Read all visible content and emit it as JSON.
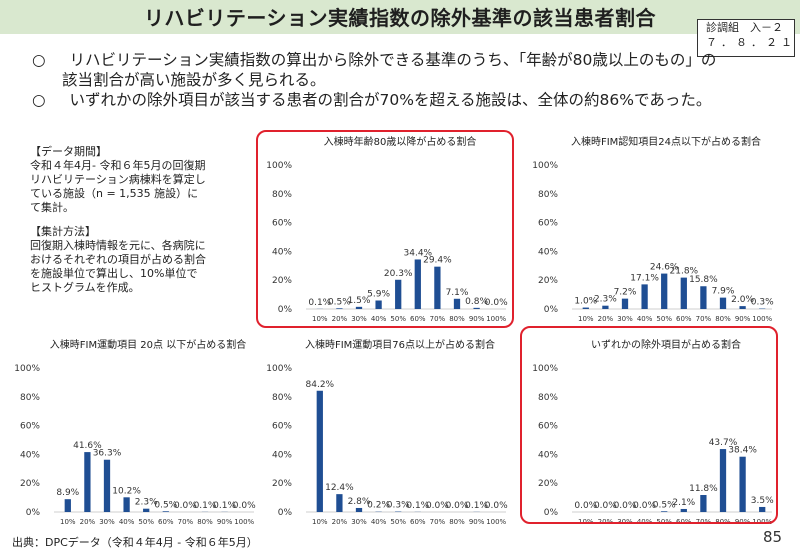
{
  "header": {
    "title": "リハビリテーション実績指数の除外基準の該当患者割合",
    "doc_ref_line1": "診調組　入－２",
    "doc_ref_line2": "７．８．２１"
  },
  "summary": {
    "bullet1": "○",
    "bullet1_text_a": "リハビリテーション実績指数の算出から除外できる基準のうち、「年齢が80歳以上のもの」の",
    "bullet1_text_b": "該当割合が高い施設が多く見られる。",
    "bullet2": "○",
    "bullet2_text": "いずれかの除外項目が該当する患者の割合が70%を超える施設は、全体の約86%であった。"
  },
  "notes": {
    "period_heading": "【データ期間】",
    "period_text_1": "令和４年4月- 令和６年5月の回復期",
    "period_text_2": "リハビリテーション病棟料を算定し",
    "period_text_3": "ている施設（n = 1,535 施設）に",
    "period_text_4": "て集計。",
    "method_heading": "【集計方法】",
    "method_text_1": "回復期入棟時情報を元に、各病院に",
    "method_text_2": "おけるそれぞれの項目が占める割合",
    "method_text_3": "を施設単位で算出し、10%単位で",
    "method_text_4": "ヒストグラムを作成。"
  },
  "footer": {
    "source": "出典：DPCデータ（令和４年4月 - 令和６年5月）",
    "page_number": "85"
  },
  "colors": {
    "bar": "#1f4e93",
    "highlight": "#e0212d",
    "title_bg": "#d9e8cf"
  },
  "chart_data": [
    {
      "type": "bar",
      "title": "入棟時年齢80歳以降が占める割合",
      "categories": [
        "10%",
        "20%",
        "30%",
        "40%",
        "50%",
        "60%",
        "70%",
        "80%",
        "90%",
        "100%"
      ],
      "values": [
        0.1,
        0.5,
        1.5,
        5.9,
        20.3,
        34.4,
        29.4,
        7.1,
        0.8,
        0.0
      ],
      "labels": [
        "0.1%",
        "0.5%",
        "1.5%",
        "5.9%",
        "20.3%",
        "34.4%",
        "29.4%",
        "7.1%",
        "0.8%",
        "0.0%"
      ],
      "yticks": [
        "0%",
        "20%",
        "40%",
        "60%",
        "80%",
        "100%"
      ],
      "ylim": [
        0,
        100
      ],
      "highlighted": true
    },
    {
      "type": "bar",
      "title": "入棟時FIM認知項目24点以下が占める割合",
      "categories": [
        "10%",
        "20%",
        "30%",
        "40%",
        "50%",
        "60%",
        "70%",
        "80%",
        "90%",
        "100%"
      ],
      "values": [
        1.0,
        2.3,
        7.2,
        17.1,
        24.6,
        21.8,
        15.8,
        7.9,
        2.0,
        0.3
      ],
      "labels": [
        "1.0%",
        "2.3%",
        "7.2%",
        "17.1%",
        "24.6%",
        "21.8%",
        "15.8%",
        "7.9%",
        "2.0%",
        "0.3%"
      ],
      "yticks": [
        "0%",
        "20%",
        "40%",
        "60%",
        "80%",
        "100%"
      ],
      "ylim": [
        0,
        100
      ],
      "highlighted": false
    },
    {
      "type": "bar",
      "title": "入棟時FIM運動項目 20点 以下が占める割合",
      "categories": [
        "10%",
        "20%",
        "30%",
        "40%",
        "50%",
        "60%",
        "70%",
        "80%",
        "90%",
        "100%"
      ],
      "values": [
        8.9,
        41.6,
        36.3,
        10.2,
        2.3,
        0.5,
        0.0,
        0.1,
        0.1,
        0.0
      ],
      "labels": [
        "8.9%",
        "41.6%",
        "36.3%",
        "10.2%",
        "2.3%",
        "0.5%",
        "0.0%",
        "0.1%",
        "0.1%",
        "0.0%"
      ],
      "yticks": [
        "0%",
        "20%",
        "40%",
        "60%",
        "80%",
        "100%"
      ],
      "ylim": [
        0,
        100
      ],
      "highlighted": false
    },
    {
      "type": "bar",
      "title": "入棟時FIM運動項目76点以上が占める割合",
      "categories": [
        "10%",
        "20%",
        "30%",
        "40%",
        "50%",
        "60%",
        "70%",
        "80%",
        "90%",
        "100%"
      ],
      "values": [
        84.2,
        12.4,
        2.8,
        0.2,
        0.3,
        0.1,
        0.0,
        0.0,
        0.1,
        0.0
      ],
      "labels": [
        "84.2%",
        "12.4%",
        "2.8%",
        "0.2%",
        "0.3%",
        "0.1%",
        "0.0%",
        "0.0%",
        "0.1%",
        "0.0%"
      ],
      "yticks": [
        "0%",
        "20%",
        "40%",
        "60%",
        "80%",
        "100%"
      ],
      "ylim": [
        0,
        100
      ],
      "highlighted": false
    },
    {
      "type": "bar",
      "title": "いずれかの除外項目が占める割合",
      "categories": [
        "10%",
        "20%",
        "30%",
        "40%",
        "50%",
        "60%",
        "70%",
        "80%",
        "90%",
        "100%"
      ],
      "values": [
        0.0,
        0.0,
        0.0,
        0.0,
        0.5,
        2.1,
        11.8,
        43.7,
        38.4,
        3.5
      ],
      "labels": [
        "0.0%",
        "0.0%",
        "0.0%",
        "0.0%",
        "0.5%",
        "2.1%",
        "11.8%",
        "43.7%",
        "38.4%",
        "3.5%"
      ],
      "yticks": [
        "0%",
        "20%",
        "40%",
        "60%",
        "80%",
        "100%"
      ],
      "ylim": [
        0,
        100
      ],
      "highlighted": true
    }
  ]
}
